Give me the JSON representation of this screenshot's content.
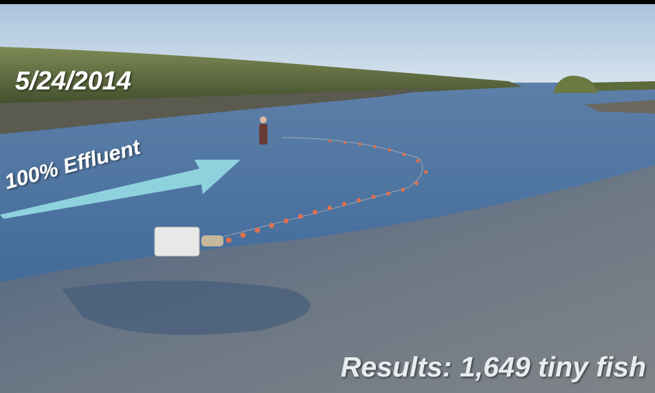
{
  "date": "5/24/2014",
  "annotation": "100% Effluent",
  "caption": "Results: 1,649 tiny fish"
}
